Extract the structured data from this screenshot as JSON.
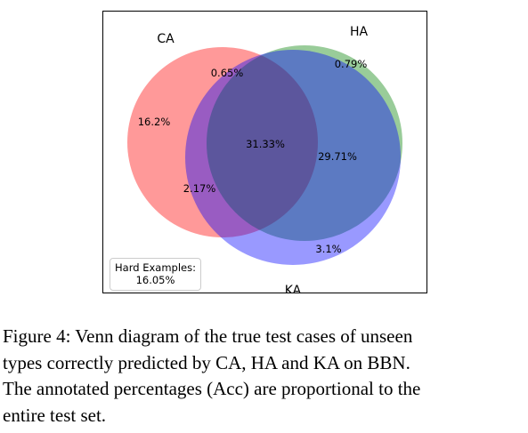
{
  "sets": [
    {
      "name": "CA",
      "color": "#ff0000"
    },
    {
      "name": "HA",
      "color": "#008000"
    },
    {
      "name": "KA",
      "color": "#0000ff"
    }
  ],
  "regions": {
    "ca_only": "16.2%",
    "ca_ha": "0.65%",
    "ha_only": "0.79%",
    "ca_ha_ka": "31.33%",
    "ha_ka": "29.71%",
    "ca_ka": "2.17%",
    "ka_only": "3.1%"
  },
  "hard_examples": {
    "label": "Hard Examples:",
    "value": "16.05%"
  },
  "caption": {
    "lines": [
      "Figure 4: Venn diagram of the true test cases of unseen",
      "types correctly predicted by CA, HA and KA on BBN.",
      "The annotated percentages (Acc) are proportional to the",
      "entire test set."
    ]
  }
}
